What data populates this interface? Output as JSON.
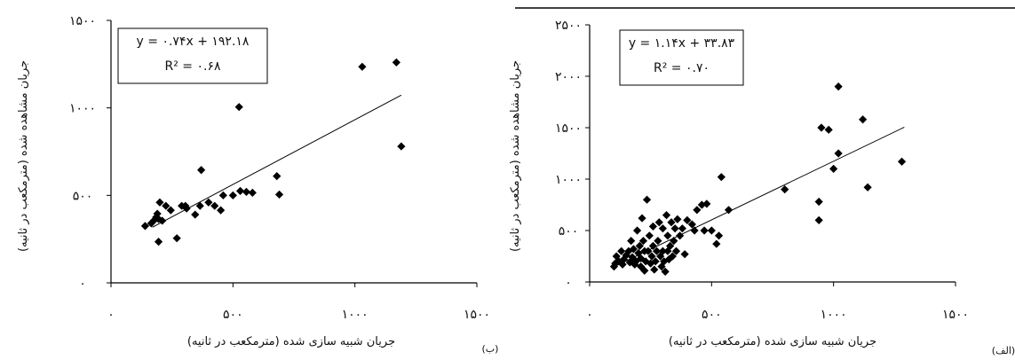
{
  "chart_data": [
    {
      "panel_label": "(ب)",
      "type": "scatter",
      "title": "",
      "xlabel": "جریان شبیه سازی شده (مترمکعب در ثانیه)",
      "ylabel": "جریان مشاهده شده (مترمکعب در ثانیه)",
      "xlim": [
        0,
        1500
      ],
      "ylim": [
        0,
        1500
      ],
      "xticks": [
        0,
        500,
        1000,
        1500
      ],
      "yticks": [
        0,
        500,
        1000,
        1500
      ],
      "xtick_labels": [
        "۰",
        "۵۰۰",
        "۱۰۰۰",
        "۱۵۰۰"
      ],
      "ytick_labels": [
        "۰",
        "۵۰۰",
        "۱۰۰۰",
        "۱۵۰۰"
      ],
      "equation": "y = ۰.۷۴x + ۱۹۲.۱۸",
      "r2_label": "R² = ۰.۶۸",
      "trendline": {
        "slope": 0.74,
        "intercept": 192.18,
        "x_range": [
          170,
          1190
        ]
      },
      "grid": false,
      "points": [
        [
          140,
          325
        ],
        [
          165,
          340
        ],
        [
          175,
          355
        ],
        [
          185,
          375
        ],
        [
          190,
          395
        ],
        [
          195,
          365
        ],
        [
          200,
          460
        ],
        [
          210,
          355
        ],
        [
          225,
          440
        ],
        [
          195,
          235
        ],
        [
          270,
          255
        ],
        [
          245,
          415
        ],
        [
          290,
          440
        ],
        [
          305,
          440
        ],
        [
          310,
          425
        ],
        [
          345,
          390
        ],
        [
          370,
          645
        ],
        [
          365,
          440
        ],
        [
          400,
          460
        ],
        [
          425,
          440
        ],
        [
          450,
          415
        ],
        [
          460,
          500
        ],
        [
          500,
          500
        ],
        [
          525,
          1005
        ],
        [
          530,
          525
        ],
        [
          555,
          520
        ],
        [
          580,
          515
        ],
        [
          680,
          610
        ],
        [
          690,
          505
        ],
        [
          1030,
          1235
        ],
        [
          1170,
          1260
        ],
        [
          1190,
          780
        ]
      ]
    },
    {
      "panel_label": "(الف)",
      "type": "scatter",
      "title": "",
      "xlabel": "جریان شبیه سازی شده (مترمکعب در ثانیه)",
      "ylabel": "جریان مشاهده شده (مترمکعب در ثانیه)",
      "xlim": [
        0,
        1500
      ],
      "ylim": [
        0,
        2500
      ],
      "xticks": [
        0,
        500,
        1000,
        1500
      ],
      "yticks": [
        0,
        500,
        1000,
        1500,
        2000,
        2500
      ],
      "xtick_labels": [
        "۰",
        "۵۰۰",
        "۱۰۰۰",
        "۱۵۰۰"
      ],
      "ytick_labels": [
        "۰",
        "۵۰۰",
        "۱۰۰۰",
        "۱۵۰۰",
        "۲۰۰۰",
        "۲۵۰۰"
      ],
      "equation": "y = ۱.۱۴x + ۳۳.۸۳",
      "r2_label": "R² = ۰.۷۰",
      "trendline": {
        "slope": 1.14,
        "intercept": 33.83,
        "x_range": [
          100,
          1290
        ]
      },
      "grid": false,
      "points": [
        [
          100,
          150
        ],
        [
          110,
          250
        ],
        [
          105,
          180
        ],
        [
          120,
          200
        ],
        [
          130,
          300
        ],
        [
          135,
          170
        ],
        [
          140,
          220
        ],
        [
          150,
          260
        ],
        [
          160,
          300
        ],
        [
          165,
          190
        ],
        [
          170,
          400
        ],
        [
          175,
          240
        ],
        [
          180,
          320
        ],
        [
          185,
          170
        ],
        [
          190,
          200
        ],
        [
          195,
          500
        ],
        [
          200,
          280
        ],
        [
          205,
          350
        ],
        [
          210,
          230
        ],
        [
          210,
          150
        ],
        [
          215,
          620
        ],
        [
          220,
          400
        ],
        [
          225,
          300
        ],
        [
          225,
          110
        ],
        [
          230,
          200
        ],
        [
          235,
          800
        ],
        [
          240,
          300
        ],
        [
          245,
          450
        ],
        [
          250,
          180
        ],
        [
          255,
          250
        ],
        [
          260,
          350
        ],
        [
          260,
          540
        ],
        [
          265,
          120
        ],
        [
          270,
          200
        ],
        [
          275,
          300
        ],
        [
          280,
          400
        ],
        [
          285,
          580
        ],
        [
          290,
          250
        ],
        [
          295,
          150
        ],
        [
          300,
          300
        ],
        [
          300,
          520
        ],
        [
          305,
          200
        ],
        [
          310,
          100
        ],
        [
          315,
          650
        ],
        [
          320,
          300
        ],
        [
          320,
          450
        ],
        [
          325,
          220
        ],
        [
          330,
          350
        ],
        [
          335,
          580
        ],
        [
          340,
          250
        ],
        [
          345,
          400
        ],
        [
          350,
          520
        ],
        [
          355,
          300
        ],
        [
          360,
          610
        ],
        [
          370,
          450
        ],
        [
          380,
          520
        ],
        [
          390,
          270
        ],
        [
          400,
          600
        ],
        [
          420,
          560
        ],
        [
          430,
          500
        ],
        [
          440,
          700
        ],
        [
          460,
          750
        ],
        [
          470,
          500
        ],
        [
          480,
          760
        ],
        [
          500,
          500
        ],
        [
          520,
          370
        ],
        [
          530,
          450
        ],
        [
          540,
          1020
        ],
        [
          570,
          700
        ],
        [
          800,
          900
        ],
        [
          940,
          600
        ],
        [
          940,
          780
        ],
        [
          950,
          1500
        ],
        [
          980,
          1480
        ],
        [
          1000,
          1100
        ],
        [
          1020,
          1900
        ],
        [
          1020,
          1250
        ],
        [
          1120,
          1580
        ],
        [
          1140,
          920
        ],
        [
          1280,
          1170
        ]
      ]
    }
  ]
}
